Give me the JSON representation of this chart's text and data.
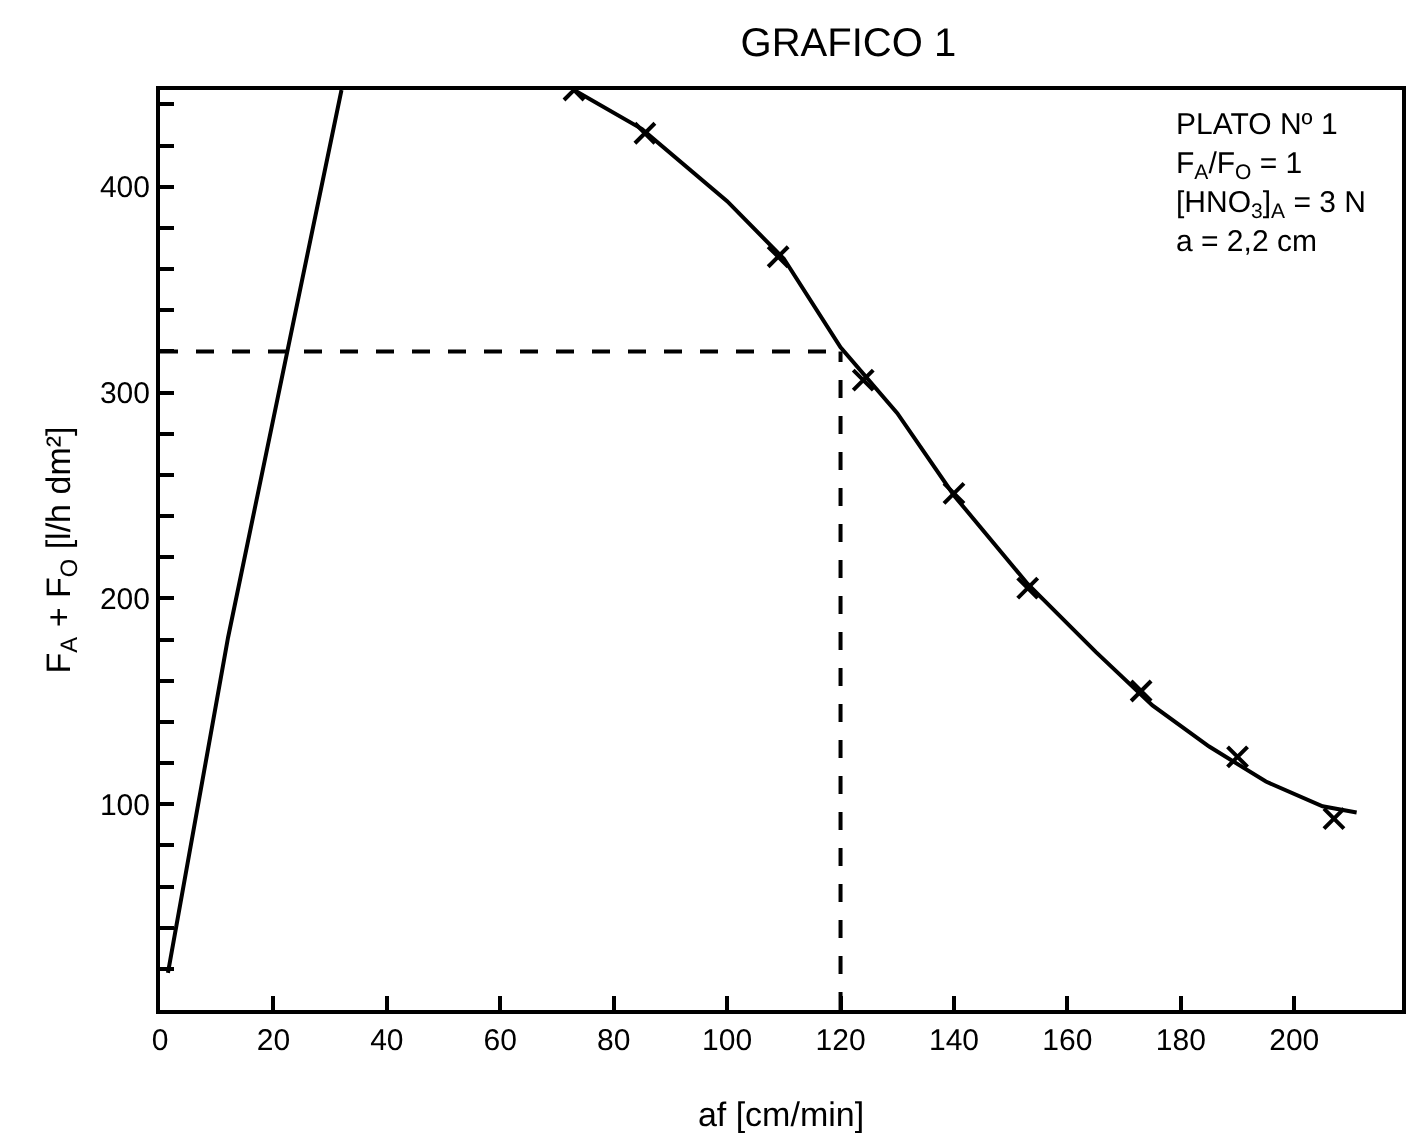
{
  "chart_data": {
    "type": "scatter",
    "title": "GRAFICO 1",
    "xlabel": "af [cm/min]",
    "ylabel": "F$_{A}$ + F$_{O}$ [l/h dm²]",
    "annotations": [
      "PLATO Nº 1",
      "F$_{A}$/F$_{O}$ = 1",
      "[HNO$_{3}$]$_{A}$ = 3 N",
      "a = 2,2 cm"
    ],
    "series": [
      {
        "color": "#000000",
        "marker": "cross",
        "x": [
          73,
          85.5,
          109,
          124,
          140,
          153,
          173,
          190,
          207
        ],
        "values": [
          447,
          426,
          366,
          306,
          251,
          205,
          155,
          123,
          93
        ]
      },
      {
        "type": "line",
        "color": "#000000",
        "marker": "none",
        "line_style": "solid",
        "x": [
          73,
          85,
          100,
          110,
          120,
          130,
          140,
          153,
          165,
          175,
          185,
          195,
          205,
          211
        ],
        "values": [
          447,
          428,
          393,
          365,
          322,
          290,
          250,
          207,
          174,
          148,
          128,
          111,
          99,
          96
        ]
      },
      {
        "type": "line",
        "color": "#000000",
        "marker": "none",
        "line_style": "solid",
        "x": [
          1.4,
          12,
          32
        ],
        "values": [
          18,
          181,
          447
        ]
      }
    ],
    "ref_lines": [
      {
        "axis": "y",
        "value": 320,
        "line_style": "dashed",
        "color": "#000000"
      },
      {
        "axis": "x",
        "value": 120,
        "line_style": "dashed",
        "color": "#000000"
      }
    ],
    "xlim": [
      0,
      219
    ],
    "ylim": [
      0,
      447
    ],
    "xticks": [
      0,
      20,
      40,
      60,
      80,
      100,
      120,
      140,
      160,
      180,
      200
    ],
    "yticks": [
      {
        "value": 20,
        "label": null
      },
      {
        "value": 40,
        "label": null
      },
      {
        "value": 60,
        "label": null
      },
      {
        "value": 80,
        "label": null
      },
      100,
      {
        "value": 120,
        "label": null
      },
      {
        "value": 140,
        "label": null
      },
      {
        "value": 160,
        "label": null
      },
      {
        "value": 180,
        "label": null
      },
      200,
      {
        "value": 220,
        "label": null
      },
      {
        "value": 240,
        "label": null
      },
      {
        "value": 260,
        "label": null
      },
      {
        "value": 280,
        "label": null
      },
      300,
      {
        "value": 320,
        "label": null
      },
      {
        "value": 340,
        "label": null
      },
      {
        "value": 360,
        "label": null
      },
      {
        "value": 380,
        "label": null
      },
      400,
      {
        "value": 420,
        "label": null
      },
      {
        "value": 440,
        "label": null
      }
    ],
    "grid": false
  }
}
